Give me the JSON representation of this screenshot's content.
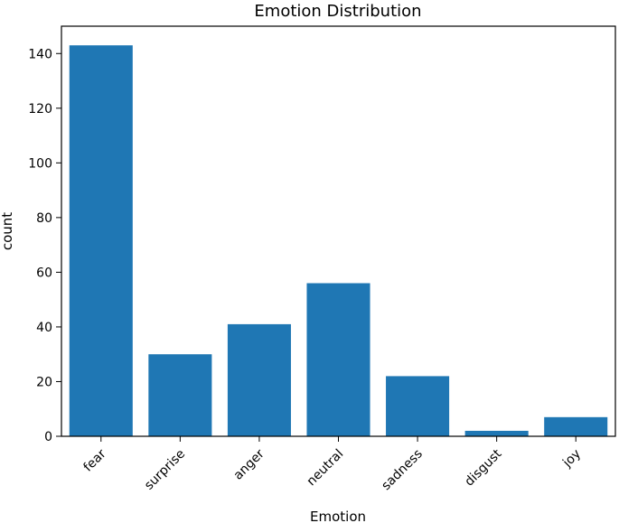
{
  "chart_data": {
    "type": "bar",
    "title": "Emotion Distribution",
    "xlabel": "Emotion",
    "ylabel": "count",
    "categories": [
      "fear",
      "surprise",
      "anger",
      "neutral",
      "sadness",
      "disgust",
      "joy"
    ],
    "values": [
      143,
      30,
      41,
      56,
      22,
      2,
      7
    ],
    "ylim": [
      0,
      150
    ],
    "yticks": [
      0,
      20,
      40,
      60,
      80,
      100,
      120,
      140
    ],
    "ytick_labels": [
      "0",
      "20",
      "40",
      "60",
      "80",
      "100",
      "120",
      "140"
    ],
    "grid": false,
    "legend": "none",
    "bar_color": "#1f77b4"
  }
}
